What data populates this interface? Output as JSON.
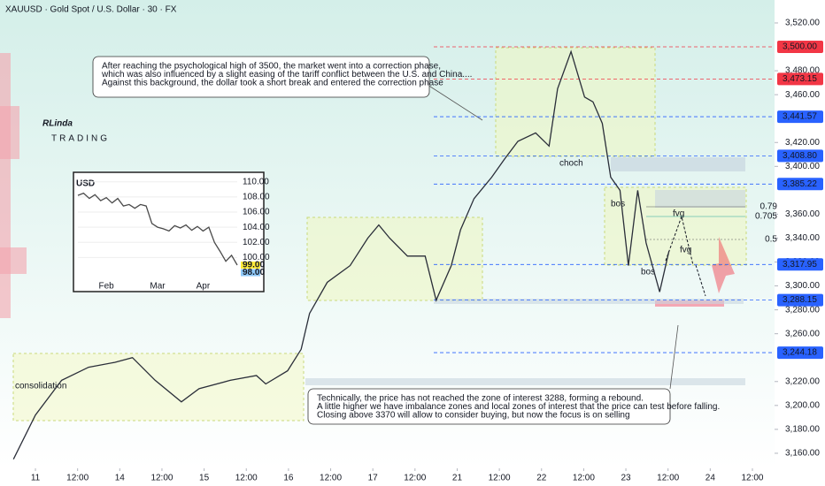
{
  "chart_data": [
    {
      "type": "line",
      "title": "XAUUSD · Gold Spot / U.S. Dollar · 30 · FX",
      "logo": [
        "RLinda",
        "TRADING"
      ],
      "x": [
        -0.26,
        0,
        0.31,
        0.63,
        0.94,
        1.15,
        1.42,
        1.73,
        1.94,
        2.31,
        2.62,
        2.73,
        2.99,
        3.15,
        3.25,
        3.46,
        3.73,
        3.94,
        4.07,
        4.2,
        4.41,
        4.62,
        4.75,
        4.93,
        5.04,
        5.2,
        5.41,
        5.56,
        5.72,
        5.93,
        6.09,
        6.19,
        6.35,
        6.51,
        6.61,
        6.72,
        6.82,
        6.93,
        7.03,
        7.14,
        7.24,
        7.4,
        7.51
      ],
      "values": [
        3155,
        3192,
        3221,
        3232,
        3236,
        3240,
        3221,
        3203,
        3214,
        3221,
        3225,
        3218,
        3229,
        3247,
        3277,
        3303,
        3317,
        3340,
        3351,
        3340,
        3325,
        3325,
        3288,
        3317,
        3347,
        3373,
        3391,
        3406,
        3421,
        3428,
        3417,
        3465,
        3496,
        3458,
        3454,
        3436,
        3391,
        3380,
        3317,
        3380,
        3336,
        3295,
        3329
      ],
      "color": "#2a2e39",
      "xlim": [
        -0.42,
        8.71
      ],
      "ylim": [
        3147.4,
        3539.2
      ],
      "xticks": [
        {
          "value": 0,
          "label": "11"
        },
        {
          "value": 0.5,
          "label": "12:00"
        },
        {
          "value": 1,
          "label": "14"
        },
        {
          "value": 1.5,
          "label": "12:00"
        },
        {
          "value": 2,
          "label": "15"
        },
        {
          "value": 2.5,
          "label": "12:00"
        },
        {
          "value": 3,
          "label": "16"
        },
        {
          "value": 3.5,
          "label": "12:00"
        },
        {
          "value": 4,
          "label": "17"
        },
        {
          "value": 4.5,
          "label": "12:00"
        },
        {
          "value": 5,
          "label": "21"
        },
        {
          "value": 5.5,
          "label": "12:00"
        },
        {
          "value": 6,
          "label": "22"
        },
        {
          "value": 6.5,
          "label": "12:00"
        },
        {
          "value": 7,
          "label": "23"
        },
        {
          "value": 7.5,
          "label": "12:00"
        },
        {
          "value": 8,
          "label": "24"
        },
        {
          "value": 8.5,
          "label": "12:00"
        }
      ],
      "yticks": [
        {
          "value": 3160,
          "label": "3,160.00"
        },
        {
          "value": 3180,
          "label": "3,180.00"
        },
        {
          "value": 3200,
          "label": "3,200.00"
        },
        {
          "value": 3220,
          "label": "3,220.00"
        },
        {
          "value": 3260,
          "label": "3,260.00"
        },
        {
          "value": 3280,
          "label": "3,280.00"
        },
        {
          "value": 3300,
          "label": "3,300.00"
        },
        {
          "value": 3320,
          "label": "3,320.00"
        },
        {
          "value": 3340,
          "label": "3,340.00"
        },
        {
          "value": 3360,
          "label": "3,360.00"
        },
        {
          "value": 3400,
          "label": "3,400.00"
        },
        {
          "value": 3420,
          "label": "3,420.00"
        },
        {
          "value": 3460,
          "label": "3,460.00"
        },
        {
          "value": 3480,
          "label": "3,480.00"
        },
        {
          "value": 3520,
          "label": "3,520.00"
        }
      ],
      "levels": [
        {
          "value": 3500,
          "label": "3,500.00",
          "color": "#f23645"
        },
        {
          "value": 3473.15,
          "label": "3,473.15",
          "color": "#f23645"
        },
        {
          "value": 3441.57,
          "label": "3,441.57",
          "color": "#2962ff"
        },
        {
          "value": 3408.8,
          "label": "3,408.80",
          "color": "#2962ff"
        },
        {
          "value": 3385.22,
          "label": "3,385.22",
          "color": "#2962ff"
        },
        {
          "value": 3317.95,
          "label": "3,317.95",
          "color": "#2962ff"
        },
        {
          "value": 3288.15,
          "label": "3,288.15",
          "color": "#2962ff"
        },
        {
          "value": 3244.18,
          "label": "3,244.18",
          "color": "#2962ff"
        }
      ],
      "fib": [
        0.79,
        0.705,
        0.5
      ],
      "labels": [
        "choch",
        "bos",
        "bos",
        "fvg",
        "fvg",
        "consolidation"
      ],
      "notes": [
        [
          "After reaching the psychological high of 3500, the market went into a correction phase,",
          "which was also influenced by a slight easing of the tariff conflict between the U.S. and China....",
          "Against this background, the dollar took a short break and entered the correction phase"
        ],
        [
          "Technically, the price has not reached the zone of interest 3288, forming a rebound.",
          "A little higher we have imbalance zones and local zones of interest that the price can test before falling.",
          "Closing above 3370 will allow to consider buying, but now the focus is on selling"
        ]
      ]
    },
    {
      "type": "line",
      "title": "USD",
      "categories": [
        null,
        null,
        null,
        null,
        null,
        "Feb",
        null,
        null,
        null,
        null,
        null,
        null,
        null,
        null,
        "Mar",
        null,
        null,
        null,
        null,
        null,
        null,
        null,
        "Apr",
        null,
        null,
        null,
        null,
        null,
        null
      ],
      "values": [
        108.2,
        108.5,
        107.8,
        108.3,
        107.5,
        107.9,
        107.2,
        107.8,
        106.8,
        107.0,
        106.5,
        107.0,
        106.8,
        104.5,
        104.0,
        103.8,
        103.5,
        104.2,
        103.9,
        104.3,
        103.6,
        104.1,
        103.5,
        104.0,
        102.0,
        100.8,
        99.5,
        100.3,
        99.0
      ],
      "color": "#4a4a4a",
      "ylim": [
        96.9,
        110.9
      ],
      "yticks": [
        {
          "value": 110,
          "label": "110.00"
        },
        {
          "value": 108,
          "label": "108.00"
        },
        {
          "value": 106,
          "label": "106.00"
        },
        {
          "value": 104,
          "label": "104.00"
        },
        {
          "value": 102,
          "label": "102.00"
        },
        {
          "value": 100,
          "label": "100.00"
        }
      ],
      "badges": [
        {
          "value": 99,
          "label": "99.00",
          "color": "#ffeb3b"
        },
        {
          "value": 98,
          "label": "98.00",
          "color": "#90caf9"
        }
      ]
    }
  ]
}
